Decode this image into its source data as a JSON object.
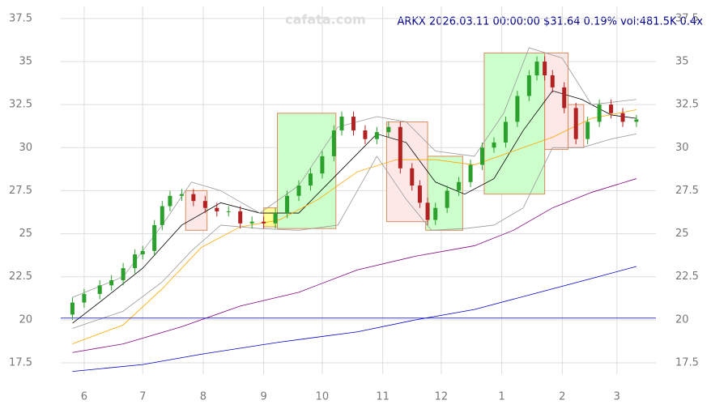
{
  "chart_data": {
    "type": "candlestick",
    "title": "ARKX 2026.03.11 00:00:00 $31.64 0.19% vol:481.5K 0.4x",
    "watermark": "cafata.com",
    "xlim": [
      -12,
      293
    ],
    "ylim": [
      15.9,
      38.2
    ],
    "xticks": [
      {
        "value": 0,
        "label": "6"
      },
      {
        "value": 30,
        "label": "7"
      },
      {
        "value": 61,
        "label": "8"
      },
      {
        "value": 92,
        "label": "9"
      },
      {
        "value": 122,
        "label": "10"
      },
      {
        "value": 153,
        "label": "11"
      },
      {
        "value": 183,
        "label": "12"
      },
      {
        "value": 214,
        "label": "1"
      },
      {
        "value": 245,
        "label": "2"
      },
      {
        "value": 273,
        "label": "3"
      }
    ],
    "yticks": [
      17.5,
      20.0,
      22.5,
      25.0,
      27.5,
      30.0,
      32.5,
      35.0,
      37.5
    ],
    "grid": true,
    "up_color": "#2ca02c",
    "down_color": "#b22222",
    "x": [
      -6,
      0,
      8,
      14,
      20,
      26,
      30,
      36,
      40,
      44,
      50,
      56,
      62,
      68,
      74,
      80,
      86,
      92,
      98,
      104,
      110,
      116,
      122,
      128,
      132,
      138,
      144,
      150,
      156,
      162,
      168,
      172,
      176,
      180,
      186,
      192,
      198,
      204,
      210,
      216,
      222,
      228,
      232,
      236,
      240,
      246,
      252,
      258,
      264,
      270,
      276,
      283
    ],
    "open": [
      20.3,
      21.0,
      21.5,
      22.0,
      22.3,
      23.0,
      23.8,
      24.0,
      25.5,
      26.6,
      27.2,
      27.3,
      26.9,
      26.5,
      26.3,
      26.3,
      25.6,
      25.7,
      25.6,
      26.2,
      27.2,
      27.8,
      28.5,
      29.5,
      31.0,
      31.8,
      31.0,
      30.5,
      30.9,
      31.2,
      28.8,
      27.8,
      26.8,
      25.8,
      26.5,
      27.5,
      28.0,
      29.0,
      30.0,
      30.3,
      31.5,
      33.0,
      34.2,
      35.0,
      34.2,
      33.5,
      32.3,
      30.5,
      31.5,
      32.5,
      32.0,
      31.5
    ],
    "high": [
      21.3,
      21.8,
      22.3,
      22.6,
      23.3,
      24.1,
      24.3,
      25.8,
      26.9,
      27.5,
      27.6,
      27.6,
      27.2,
      26.8,
      26.6,
      26.6,
      26.0,
      26.0,
      26.5,
      27.5,
      28.1,
      28.8,
      29.8,
      31.3,
      32.1,
      32.1,
      31.3,
      31.2,
      31.5,
      31.5,
      29.1,
      28.1,
      27.1,
      26.8,
      27.8,
      28.3,
      29.3,
      30.3,
      30.6,
      31.8,
      33.3,
      34.5,
      35.3,
      35.3,
      34.5,
      33.8,
      32.6,
      31.8,
      32.8,
      32.8,
      32.3,
      31.9
    ],
    "low": [
      20.0,
      20.7,
      21.2,
      21.7,
      22.0,
      22.7,
      23.5,
      23.7,
      25.2,
      26.3,
      26.9,
      26.6,
      26.2,
      26.0,
      26.0,
      25.3,
      25.3,
      25.3,
      25.3,
      25.9,
      26.9,
      27.5,
      28.2,
      29.2,
      30.7,
      30.7,
      30.2,
      30.2,
      30.6,
      28.5,
      27.5,
      26.5,
      25.5,
      25.5,
      26.2,
      27.2,
      27.7,
      28.7,
      29.7,
      30.0,
      31.2,
      32.7,
      33.9,
      33.9,
      33.2,
      32.0,
      30.2,
      30.2,
      31.2,
      31.7,
      31.2,
      31.2
    ],
    "close": [
      21.0,
      21.5,
      22.0,
      22.3,
      23.0,
      23.8,
      24.0,
      25.5,
      26.6,
      27.2,
      27.3,
      26.9,
      26.5,
      26.3,
      26.3,
      25.6,
      25.7,
      25.6,
      26.2,
      27.2,
      27.8,
      28.5,
      29.5,
      31.0,
      31.8,
      31.0,
      30.5,
      30.9,
      31.2,
      28.8,
      27.8,
      26.8,
      25.8,
      26.5,
      27.5,
      28.0,
      29.0,
      30.0,
      30.3,
      31.5,
      33.0,
      34.2,
      35.0,
      34.2,
      33.5,
      32.3,
      30.5,
      31.5,
      32.5,
      32.0,
      31.5,
      31.64
    ],
    "zones": [
      {
        "x": [
          92,
          104
        ],
        "y": [
          25.4,
          26.5
        ],
        "color": "#ffff99"
      },
      {
        "x": [
          99,
          129
        ],
        "y": [
          25.3,
          32.0
        ],
        "color": "#ccffcc"
      },
      {
        "x": [
          175,
          194
        ],
        "y": [
          25.2,
          29.5
        ],
        "color": "#ccffcc"
      },
      {
        "x": [
          205,
          236
        ],
        "y": [
          27.3,
          35.5
        ],
        "color": "#ccffcc"
      },
      {
        "x": [
          52,
          63
        ],
        "y": [
          25.2,
          27.5
        ],
        "color": "#fde8e8"
      },
      {
        "x": [
          155,
          176
        ],
        "y": [
          25.7,
          31.5
        ],
        "color": "#fde8e8"
      },
      {
        "x": [
          236,
          248
        ],
        "y": [
          29.9,
          35.5
        ],
        "color": "#fde8e8"
      },
      {
        "x": [
          248,
          256
        ],
        "y": [
          30.0,
          32.5
        ],
        "color": "#fde8e8"
      }
    ],
    "lines": [
      {
        "color": "#000000",
        "x": [
          -6,
          10,
          30,
          50,
          70,
          90,
          110,
          130,
          150,
          165,
          180,
          195,
          210,
          225,
          240,
          255,
          270,
          283
        ],
        "values": [
          19.8,
          21.2,
          23.0,
          25.5,
          26.8,
          26.2,
          26.2,
          28.5,
          30.8,
          30.3,
          28.0,
          27.3,
          28.2,
          31.0,
          33.3,
          32.8,
          31.9,
          31.7
        ]
      },
      {
        "color": "#ffa500",
        "x": [
          -6,
          20,
          40,
          60,
          80,
          100,
          120,
          140,
          160,
          180,
          200,
          220,
          240,
          260,
          283
        ],
        "values": [
          18.6,
          19.7,
          21.8,
          24.2,
          25.4,
          25.8,
          27.0,
          28.6,
          29.3,
          29.3,
          29.0,
          29.8,
          30.6,
          31.7,
          32.2
        ]
      },
      {
        "color": "#800080",
        "x": [
          -6,
          20,
          50,
          80,
          110,
          140,
          170,
          200,
          220,
          240,
          260,
          283
        ],
        "values": [
          18.1,
          18.6,
          19.6,
          20.8,
          21.6,
          22.9,
          23.7,
          24.3,
          25.2,
          26.5,
          27.4,
          28.2
        ]
      },
      {
        "color": "#0000cc",
        "x": [
          -6,
          30,
          60,
          100,
          140,
          170,
          200,
          230,
          260,
          283
        ],
        "values": [
          17.0,
          17.4,
          18.0,
          18.7,
          19.3,
          20.0,
          20.6,
          21.5,
          22.4,
          23.1
        ]
      },
      {
        "color": "#999999",
        "x": [
          -6,
          20,
          40,
          55,
          70,
          90,
          110,
          130,
          150,
          165,
          180,
          200,
          215,
          228,
          245,
          260,
          283
        ],
        "values": [
          21.3,
          22.5,
          25.5,
          28.0,
          27.5,
          26.2,
          27.8,
          31.2,
          31.8,
          31.5,
          29.8,
          29.5,
          32.0,
          35.8,
          35.2,
          32.5,
          32.8
        ]
      },
      {
        "color": "#999999",
        "x": [
          -6,
          20,
          40,
          55,
          70,
          90,
          110,
          130,
          150,
          165,
          178,
          195,
          210,
          225,
          240,
          255,
          270,
          283
        ],
        "values": [
          19.5,
          20.5,
          22.2,
          24.0,
          25.5,
          25.3,
          25.2,
          25.5,
          29.5,
          27.0,
          25.2,
          25.3,
          25.5,
          26.5,
          30.0,
          30.0,
          30.5,
          30.8
        ]
      },
      {
        "color": "#0000cc",
        "x": [
          -12,
          293
        ],
        "values": [
          20.1,
          20.1
        ]
      }
    ]
  }
}
